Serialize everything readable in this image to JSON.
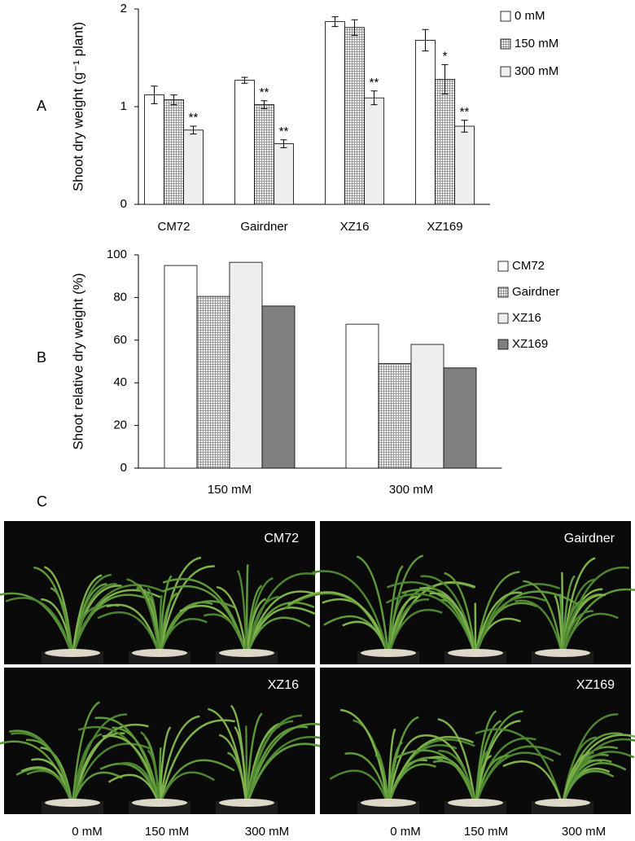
{
  "chart_data": [
    {
      "type": "bar",
      "ylabel": "Shoot dry weight (g⁻¹ plant)",
      "categories": [
        "CM72",
        "Gairdner",
        "XZ16",
        "XZ169"
      ],
      "series": [
        {
          "name": "0 mM",
          "color": "#ffffff",
          "values": [
            1.12,
            1.27,
            1.87,
            1.68
          ],
          "errors": [
            0.09,
            0.03,
            0.05,
            0.11
          ],
          "significance": [
            null,
            null,
            null,
            null
          ]
        },
        {
          "name": "150 mM",
          "color": "#d8d8d8",
          "pattern": "grid",
          "values": [
            1.07,
            1.02,
            1.81,
            1.28
          ],
          "errors": [
            0.05,
            0.04,
            0.08,
            0.15
          ],
          "significance": [
            null,
            "**",
            null,
            "*"
          ]
        },
        {
          "name": "300 mM",
          "color": "#eeeeee",
          "values": [
            0.76,
            0.62,
            1.09,
            0.8
          ],
          "errors": [
            0.04,
            0.04,
            0.07,
            0.06
          ],
          "significance": [
            "**",
            "**",
            "**",
            "**"
          ]
        }
      ],
      "ylim": [
        0,
        2
      ],
      "yticks": [
        0,
        1,
        2
      ],
      "legend": "right"
    },
    {
      "type": "bar",
      "ylabel": "Shoot relative dry weight (%)",
      "categories": [
        "150 mM",
        "300 mM"
      ],
      "series": [
        {
          "name": "CM72",
          "color": "#ffffff",
          "values": [
            95,
            67.5
          ]
        },
        {
          "name": "Gairdner",
          "color": "#d8d8d8",
          "pattern": "grid",
          "values": [
            80.5,
            49
          ]
        },
        {
          "name": "XZ16",
          "color": "#eeeeee",
          "values": [
            96.5,
            58
          ]
        },
        {
          "name": "XZ169",
          "color": "#808080",
          "values": [
            76,
            47
          ]
        }
      ],
      "ylim": [
        0,
        100
      ],
      "yticks": [
        0,
        20,
        40,
        60,
        80,
        100
      ],
      "legend": "right"
    }
  ],
  "panel_labels": [
    "A",
    "B",
    "C"
  ],
  "photos": [
    {
      "label": "CM72"
    },
    {
      "label": "Gairdner"
    },
    {
      "label": "XZ16"
    },
    {
      "label": "XZ169"
    }
  ],
  "photo_axis": [
    "0 mM",
    "150 mM",
    "300 mM"
  ]
}
